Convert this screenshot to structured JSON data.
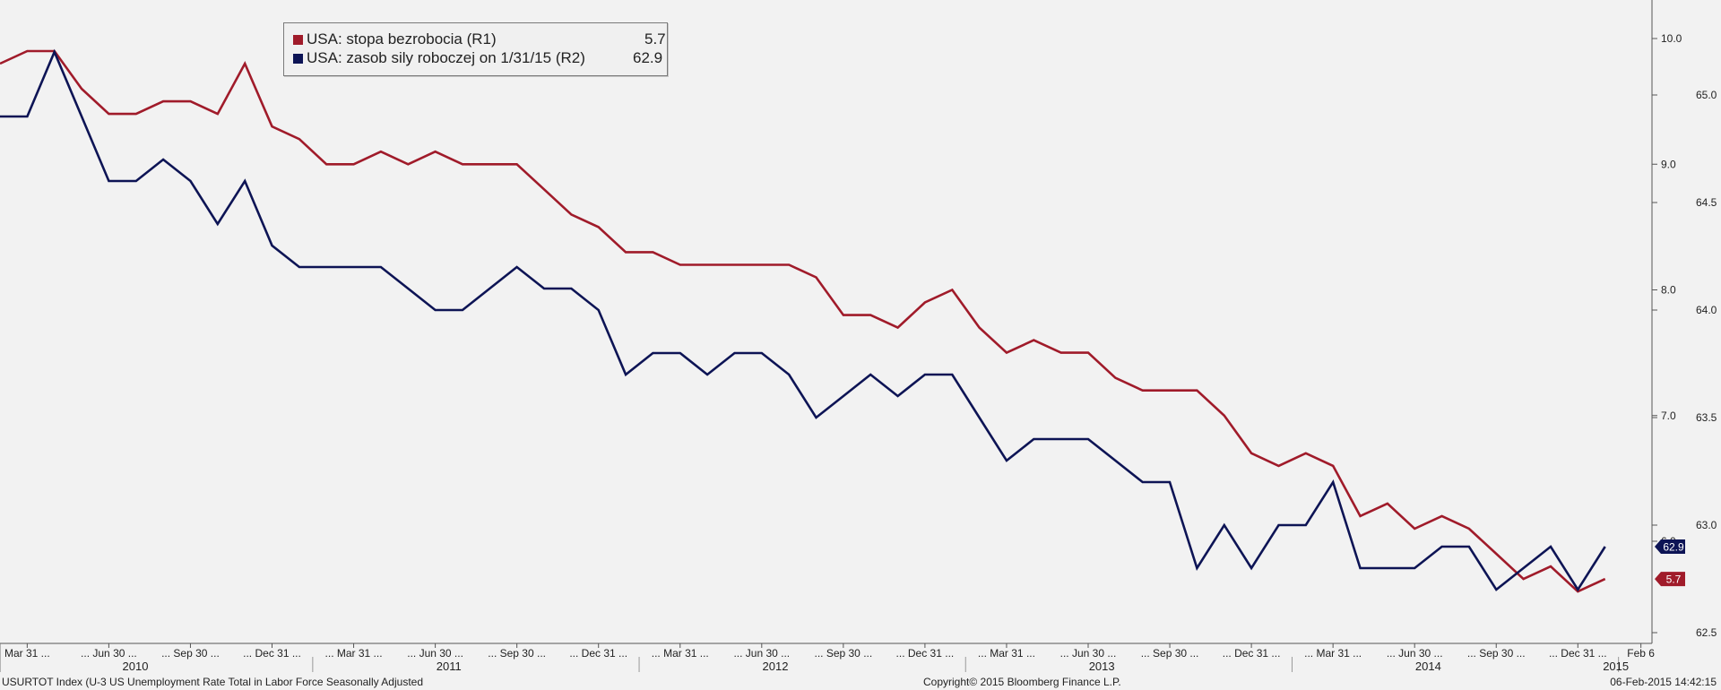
{
  "legend": [
    {
      "name": "USA: stopa bezrobocia (R1)",
      "value": "5.7",
      "color": "#a01b2a"
    },
    {
      "name": "USA: zasob sily roboczej on 1/31/15 (R2)",
      "value": "62.9",
      "color": "#0d1455"
    }
  ],
  "footer": {
    "left": "USURTOT Index (U-3 US Unemployment Rate Total in Labor Force Seasonally Adjusted",
    "center": "Copyright© 2015 Bloomberg Finance L.P.",
    "right": "06-Feb-2015 14:42:15"
  },
  "chart_data": {
    "type": "line",
    "x": [
      "2010-02",
      "2010-03",
      "2010-04",
      "2010-05",
      "2010-06",
      "2010-07",
      "2010-08",
      "2010-09",
      "2010-10",
      "2010-11",
      "2010-12",
      "2011-01",
      "2011-02",
      "2011-03",
      "2011-04",
      "2011-05",
      "2011-06",
      "2011-07",
      "2011-08",
      "2011-09",
      "2011-10",
      "2011-11",
      "2011-12",
      "2012-01",
      "2012-02",
      "2012-03",
      "2012-04",
      "2012-05",
      "2012-06",
      "2012-07",
      "2012-08",
      "2012-09",
      "2012-10",
      "2012-11",
      "2012-12",
      "2013-01",
      "2013-02",
      "2013-03",
      "2013-04",
      "2013-05",
      "2013-06",
      "2013-07",
      "2013-08",
      "2013-09",
      "2013-10",
      "2013-11",
      "2013-12",
      "2014-01",
      "2014-02",
      "2014-03",
      "2014-04",
      "2014-05",
      "2014-06",
      "2014-07",
      "2014-08",
      "2014-09",
      "2014-10",
      "2014-11",
      "2014-12",
      "2015-01"
    ],
    "series": [
      {
        "name": "USA: stopa bezrobocia (R1)",
        "axis": "right_outer",
        "color": "#a01b2a",
        "values": [
          9.8,
          9.9,
          9.9,
          9.6,
          9.4,
          9.4,
          9.5,
          9.5,
          9.4,
          9.8,
          9.3,
          9.2,
          9.0,
          9.0,
          9.1,
          9.0,
          9.1,
          9.0,
          9.0,
          9.0,
          8.8,
          8.6,
          8.5,
          8.3,
          8.3,
          8.2,
          8.2,
          8.2,
          8.2,
          8.2,
          8.1,
          7.8,
          7.8,
          7.7,
          7.9,
          8.0,
          7.7,
          7.5,
          7.6,
          7.5,
          7.5,
          7.3,
          7.2,
          7.2,
          7.2,
          7.0,
          6.7,
          6.6,
          6.7,
          6.6,
          6.2,
          6.3,
          6.1,
          6.2,
          6.1,
          5.9,
          5.7,
          5.8,
          5.6,
          5.7
        ]
      },
      {
        "name": "USA: zasob sily roboczej on 1/31/15 (R2)",
        "axis": "right_inner",
        "color": "#0d1455",
        "values": [
          64.9,
          64.9,
          65.2,
          64.9,
          64.6,
          64.6,
          64.7,
          64.6,
          64.4,
          64.6,
          64.3,
          64.2,
          64.2,
          64.2,
          64.2,
          64.1,
          64.0,
          64.0,
          64.1,
          64.2,
          64.1,
          64.1,
          64.0,
          63.7,
          63.8,
          63.8,
          63.7,
          63.8,
          63.8,
          63.7,
          63.5,
          63.6,
          63.7,
          63.6,
          63.7,
          63.7,
          63.5,
          63.3,
          63.4,
          63.4,
          63.4,
          63.3,
          63.2,
          63.2,
          62.8,
          63.0,
          62.8,
          63.0,
          63.0,
          63.2,
          62.8,
          62.8,
          62.8,
          62.9,
          62.9,
          62.7,
          62.8,
          62.9,
          62.7,
          62.9
        ]
      }
    ],
    "right_outer_axis": {
      "ticks": [
        "10.0",
        "9.0",
        "8.0",
        "7.0",
        "6.0"
      ],
      "range": [
        5.2,
        10.5
      ]
    },
    "right_inner_axis": {
      "ticks": [
        "65.0",
        "64.5",
        "64.0",
        "63.5",
        "63.0",
        "62.5"
      ],
      "range": [
        62.5,
        65.4
      ]
    },
    "x_tick_labels": [
      "Mar 31 ...",
      "... Jun 30 ...",
      "... Sep 30 ...",
      "... Dec 31 ...",
      "... Mar 31 ...",
      "... Jun 30 ...",
      "... Sep 30 ...",
      "... Dec 31 ...",
      "... Mar 31 ...",
      "... Jun 30 ...",
      "... Sep 30 ...",
      "... Dec 31 ...",
      "... Mar 31 ...",
      "... Jun 30 ...",
      "... Sep 30 ...",
      "... Dec 31 ...",
      "... Mar 31 ...",
      "... Jun 30 ...",
      "... Sep 30 ...",
      "... Dec 31 ...",
      "Feb 6"
    ],
    "year_labels": [
      "2010",
      "2011",
      "2012",
      "2013",
      "2014",
      "2015"
    ],
    "end_labels": [
      {
        "series": 0,
        "text": "5.7",
        "color": "#a01b2a"
      },
      {
        "series": 1,
        "text": "62.9",
        "color": "#0d1455"
      }
    ],
    "grid": false,
    "legend_placement": "top-left"
  }
}
